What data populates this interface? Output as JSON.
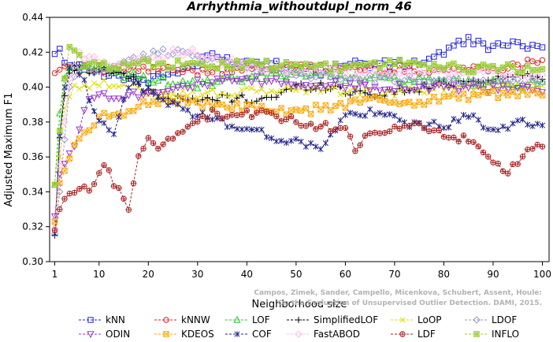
{
  "chart_data": {
    "type": "line",
    "title": "Arrhythmia_withoutdupl_norm_46",
    "xlabel": "Neighborhood size",
    "ylabel": "Adjusted Maximum F1",
    "xlim": [
      1,
      100
    ],
    "ylim": [
      0.3,
      0.44
    ],
    "x_ticks": [
      1,
      10,
      20,
      30,
      40,
      50,
      60,
      70,
      80,
      90,
      100
    ],
    "y_ticks": [
      0.3,
      0.32,
      0.34,
      0.36,
      0.38,
      0.4,
      0.42,
      0.44
    ],
    "x_tick_labels": [
      "1",
      "10",
      "20",
      "30",
      "40",
      "50",
      "60",
      "70",
      "80",
      "90",
      "100"
    ],
    "y_tick_labels": [
      "0.30",
      "0.32",
      "0.34",
      "0.36",
      "0.38",
      "0.40",
      "0.42",
      "0.44"
    ],
    "grid": false,
    "legend_position": "bottom",
    "watermark": [
      "Campos, Zimek, Sander, Campello, Micenkova, Schubert, Assent, Houle:",
      "On the Evaluation of Unsupervised Outlier Detection. DAMI, 2015."
    ],
    "series": [
      {
        "name": "kNN",
        "color": "#2222dd",
        "marker": "square",
        "anchors": [
          [
            1,
            0.419
          ],
          [
            2,
            0.422
          ],
          [
            3,
            0.414
          ],
          [
            5,
            0.411
          ],
          [
            7,
            0.412
          ],
          [
            10,
            0.409
          ],
          [
            15,
            0.406
          ],
          [
            20,
            0.404
          ],
          [
            25,
            0.408
          ],
          [
            30,
            0.413
          ],
          [
            33,
            0.419
          ],
          [
            35,
            0.416
          ],
          [
            40,
            0.414
          ],
          [
            45,
            0.415
          ],
          [
            50,
            0.411
          ],
          [
            55,
            0.409
          ],
          [
            60,
            0.414
          ],
          [
            65,
            0.413
          ],
          [
            70,
            0.413
          ],
          [
            75,
            0.414
          ],
          [
            80,
            0.42
          ],
          [
            85,
            0.427
          ],
          [
            90,
            0.423
          ],
          [
            95,
            0.424
          ],
          [
            100,
            0.425
          ]
        ]
      },
      {
        "name": "kNNW",
        "color": "#dd2222",
        "marker": "circle",
        "anchors": [
          [
            1,
            0.408
          ],
          [
            2,
            0.41
          ],
          [
            3,
            0.412
          ],
          [
            5,
            0.411
          ],
          [
            10,
            0.41
          ],
          [
            20,
            0.41
          ],
          [
            30,
            0.409
          ],
          [
            40,
            0.411
          ],
          [
            50,
            0.411
          ],
          [
            60,
            0.411
          ],
          [
            70,
            0.41
          ],
          [
            80,
            0.41
          ],
          [
            90,
            0.411
          ],
          [
            95,
            0.412
          ],
          [
            98,
            0.415
          ],
          [
            100,
            0.417
          ]
        ]
      },
      {
        "name": "LOF",
        "color": "#22cc22",
        "marker": "triangle",
        "anchors": [
          [
            1,
            0.344
          ],
          [
            2,
            0.385
          ],
          [
            3,
            0.405
          ],
          [
            4,
            0.411
          ],
          [
            6,
            0.412
          ],
          [
            10,
            0.41
          ],
          [
            15,
            0.407
          ],
          [
            20,
            0.405
          ],
          [
            25,
            0.403
          ],
          [
            30,
            0.401
          ],
          [
            40,
            0.405
          ],
          [
            50,
            0.408
          ],
          [
            60,
            0.406
          ],
          [
            70,
            0.404
          ],
          [
            80,
            0.403
          ],
          [
            90,
            0.402
          ],
          [
            100,
            0.402
          ]
        ]
      },
      {
        "name": "SimplifiedLOF",
        "color": "#000000",
        "marker": "plus",
        "anchors": [
          [
            1,
            0.315
          ],
          [
            2,
            0.371
          ],
          [
            3,
            0.395
          ],
          [
            4,
            0.408
          ],
          [
            6,
            0.411
          ],
          [
            10,
            0.41
          ],
          [
            15,
            0.408
          ],
          [
            20,
            0.397
          ],
          [
            25,
            0.393
          ],
          [
            30,
            0.392
          ],
          [
            35,
            0.394
          ],
          [
            40,
            0.393
          ],
          [
            45,
            0.394
          ],
          [
            50,
            0.4
          ],
          [
            55,
            0.401
          ],
          [
            60,
            0.398
          ],
          [
            65,
            0.396
          ],
          [
            70,
            0.397
          ],
          [
            75,
            0.399
          ],
          [
            80,
            0.402
          ],
          [
            90,
            0.405
          ],
          [
            100,
            0.407
          ]
        ]
      },
      {
        "name": "LoOP",
        "color": "#dddd00",
        "marker": "x",
        "anchors": [
          [
            1,
            0.32
          ],
          [
            2,
            0.36
          ],
          [
            3,
            0.388
          ],
          [
            5,
            0.401
          ],
          [
            10,
            0.402
          ],
          [
            20,
            0.398
          ],
          [
            30,
            0.396
          ],
          [
            40,
            0.397
          ],
          [
            50,
            0.399
          ],
          [
            60,
            0.398
          ],
          [
            70,
            0.396
          ],
          [
            80,
            0.4
          ],
          [
            90,
            0.401
          ],
          [
            100,
            0.402
          ]
        ]
      },
      {
        "name": "LDOF",
        "color": "#9999cc",
        "marker": "diamond",
        "anchors": [
          [
            1,
            0.316
          ],
          [
            2,
            0.34
          ],
          [
            4,
            0.4
          ],
          [
            6,
            0.412
          ],
          [
            10,
            0.408
          ],
          [
            15,
            0.414
          ],
          [
            20,
            0.418
          ],
          [
            25,
            0.421
          ],
          [
            30,
            0.418
          ],
          [
            35,
            0.414
          ],
          [
            40,
            0.412
          ],
          [
            50,
            0.408
          ],
          [
            60,
            0.405
          ],
          [
            70,
            0.404
          ],
          [
            80,
            0.405
          ],
          [
            90,
            0.403
          ],
          [
            100,
            0.404
          ]
        ]
      },
      {
        "name": "ODIN",
        "color": "#9933cc",
        "marker": "triangle-down",
        "anchors": [
          [
            1,
            0.326
          ],
          [
            2,
            0.35
          ],
          [
            4,
            0.362
          ],
          [
            5,
            0.366
          ],
          [
            7,
            0.389
          ],
          [
            10,
            0.396
          ],
          [
            15,
            0.395
          ],
          [
            20,
            0.397
          ],
          [
            25,
            0.4
          ],
          [
            30,
            0.402
          ],
          [
            40,
            0.404
          ],
          [
            50,
            0.402
          ],
          [
            60,
            0.401
          ],
          [
            70,
            0.4
          ],
          [
            80,
            0.4
          ],
          [
            90,
            0.399
          ],
          [
            100,
            0.398
          ]
        ]
      },
      {
        "name": "KDEOS",
        "color": "#ffa500",
        "marker": "square-x",
        "anchors": [
          [
            1,
            0.323
          ],
          [
            2,
            0.345
          ],
          [
            4,
            0.359
          ],
          [
            5,
            0.367
          ],
          [
            8,
            0.375
          ],
          [
            10,
            0.382
          ],
          [
            15,
            0.386
          ],
          [
            20,
            0.391
          ],
          [
            25,
            0.393
          ],
          [
            30,
            0.391
          ],
          [
            35,
            0.388
          ],
          [
            40,
            0.389
          ],
          [
            45,
            0.386
          ],
          [
            50,
            0.385
          ],
          [
            55,
            0.388
          ],
          [
            60,
            0.39
          ],
          [
            65,
            0.393
          ],
          [
            70,
            0.392
          ],
          [
            75,
            0.391
          ],
          [
            80,
            0.394
          ],
          [
            90,
            0.396
          ],
          [
            100,
            0.396
          ]
        ]
      },
      {
        "name": "COF",
        "color": "#222288",
        "marker": "asterisk",
        "anchors": [
          [
            1,
            0.316
          ],
          [
            2,
            0.372
          ],
          [
            3,
            0.4
          ],
          [
            4,
            0.411
          ],
          [
            5,
            0.413
          ],
          [
            7,
            0.402
          ],
          [
            9,
            0.387
          ],
          [
            11,
            0.379
          ],
          [
            13,
            0.375
          ],
          [
            15,
            0.393
          ],
          [
            17,
            0.402
          ],
          [
            20,
            0.398
          ],
          [
            25,
            0.39
          ],
          [
            30,
            0.384
          ],
          [
            35,
            0.38
          ],
          [
            40,
            0.376
          ],
          [
            45,
            0.372
          ],
          [
            50,
            0.368
          ],
          [
            55,
            0.366
          ],
          [
            58,
            0.375
          ],
          [
            60,
            0.384
          ],
          [
            65,
            0.385
          ],
          [
            70,
            0.382
          ],
          [
            75,
            0.378
          ],
          [
            80,
            0.378
          ],
          [
            85,
            0.383
          ],
          [
            90,
            0.376
          ],
          [
            95,
            0.38
          ],
          [
            100,
            0.376
          ]
        ]
      },
      {
        "name": "FastABOD",
        "color": "#ffbbee",
        "marker": "diamond",
        "anchors": [
          [
            1,
            0.319
          ],
          [
            2,
            0.355
          ],
          [
            4,
            0.405
          ],
          [
            6,
            0.419
          ],
          [
            10,
            0.415
          ],
          [
            15,
            0.413
          ],
          [
            20,
            0.417
          ],
          [
            25,
            0.421
          ],
          [
            30,
            0.419
          ],
          [
            35,
            0.415
          ],
          [
            40,
            0.412
          ],
          [
            50,
            0.409
          ],
          [
            60,
            0.409
          ],
          [
            70,
            0.408
          ],
          [
            80,
            0.408
          ],
          [
            90,
            0.408
          ],
          [
            100,
            0.406
          ]
        ]
      },
      {
        "name": "LDF",
        "color": "#aa2222",
        "marker": "circle-plus",
        "anchors": [
          [
            1,
            0.318
          ],
          [
            2,
            0.33
          ],
          [
            3,
            0.336
          ],
          [
            4,
            0.339
          ],
          [
            6,
            0.34
          ],
          [
            8,
            0.342
          ],
          [
            10,
            0.349
          ],
          [
            11,
            0.356
          ],
          [
            12,
            0.351
          ],
          [
            14,
            0.34
          ],
          [
            16,
            0.331
          ],
          [
            17,
            0.345
          ],
          [
            18,
            0.361
          ],
          [
            20,
            0.372
          ],
          [
            22,
            0.363
          ],
          [
            24,
            0.368
          ],
          [
            26,
            0.376
          ],
          [
            30,
            0.379
          ],
          [
            33,
            0.386
          ],
          [
            35,
            0.383
          ],
          [
            40,
            0.385
          ],
          [
            45,
            0.384
          ],
          [
            50,
            0.38
          ],
          [
            55,
            0.378
          ],
          [
            60,
            0.376
          ],
          [
            62,
            0.365
          ],
          [
            65,
            0.372
          ],
          [
            70,
            0.376
          ],
          [
            75,
            0.378
          ],
          [
            80,
            0.373
          ],
          [
            85,
            0.369
          ],
          [
            88,
            0.363
          ],
          [
            90,
            0.356
          ],
          [
            93,
            0.351
          ],
          [
            95,
            0.356
          ],
          [
            97,
            0.362
          ],
          [
            100,
            0.367
          ]
        ]
      },
      {
        "name": "INFLO",
        "color": "#99cc33",
        "marker": "star",
        "anchors": [
          [
            1,
            0.344
          ],
          [
            2,
            0.375
          ],
          [
            3,
            0.405
          ],
          [
            4,
            0.423
          ],
          [
            5,
            0.421
          ],
          [
            7,
            0.414
          ],
          [
            10,
            0.412
          ],
          [
            15,
            0.413
          ],
          [
            20,
            0.414
          ],
          [
            25,
            0.413
          ],
          [
            30,
            0.412
          ],
          [
            40,
            0.413
          ],
          [
            50,
            0.412
          ],
          [
            60,
            0.411
          ],
          [
            70,
            0.414
          ],
          [
            75,
            0.414
          ],
          [
            80,
            0.411
          ],
          [
            90,
            0.411
          ],
          [
            100,
            0.41
          ]
        ]
      }
    ]
  },
  "legend_order": [
    [
      "kNN",
      "kNNW",
      "LOF",
      "SimplifiedLOF",
      "LoOP",
      "LDOF"
    ],
    [
      "ODIN",
      "KDEOS",
      "COF",
      "FastABOD",
      "LDF",
      "INFLO"
    ]
  ]
}
